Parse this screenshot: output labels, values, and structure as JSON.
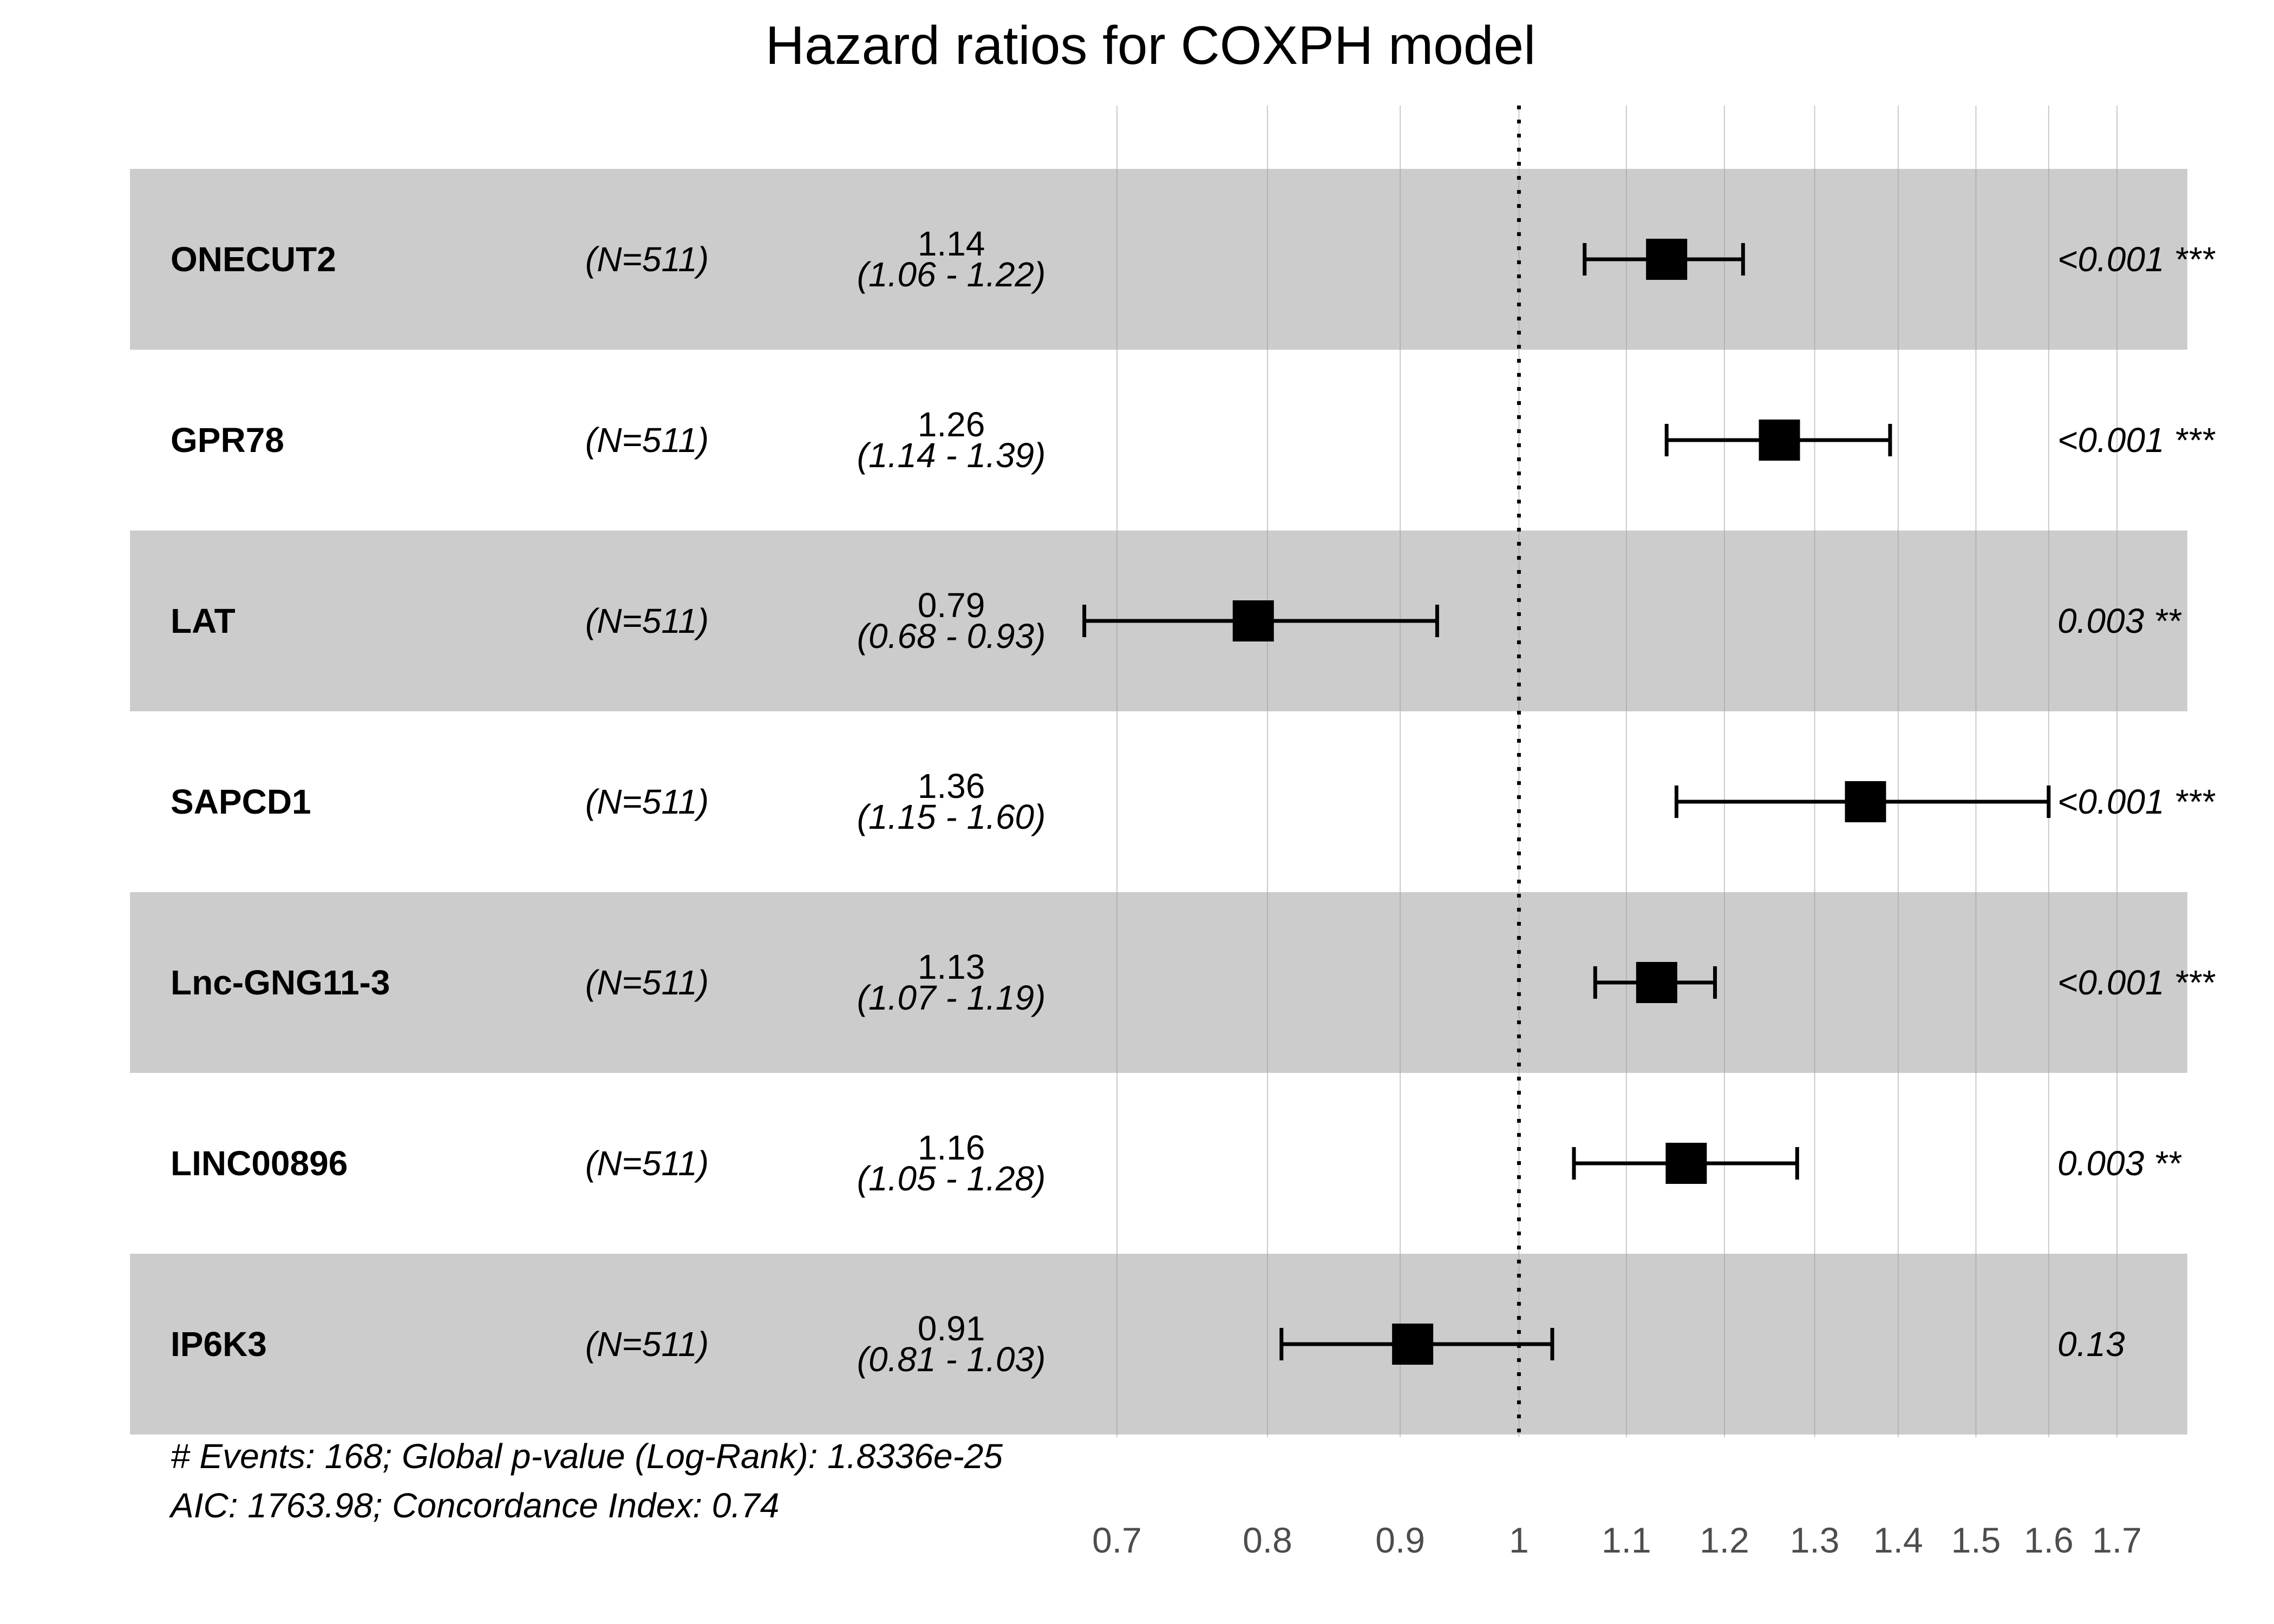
{
  "chart_data": {
    "type": "forest",
    "title": "Hazard ratios for COXPH model",
    "x_scale": "log",
    "xlim": [
      0.7,
      1.7
    ],
    "reference_line": 1,
    "ticks": [
      0.7,
      0.8,
      0.9,
      1,
      1.1,
      1.2,
      1.3,
      1.4,
      1.5,
      1.6,
      1.7
    ],
    "tick_labels": [
      "0.7",
      "0.8",
      "0.9",
      "1",
      "1.1",
      "1.2",
      "1.3",
      "1.4",
      "1.5",
      "1.6",
      "1.7"
    ],
    "rows": [
      {
        "variable": "ONECUT2",
        "n": "(N=511)",
        "hr": 1.14,
        "hr_label": "1.14",
        "lower": 1.06,
        "upper": 1.22,
        "ci_label": "(1.06 - 1.22)",
        "p_label": "<0.001 ***"
      },
      {
        "variable": "GPR78",
        "n": "(N=511)",
        "hr": 1.26,
        "hr_label": "1.26",
        "lower": 1.14,
        "upper": 1.39,
        "ci_label": "(1.14 - 1.39)",
        "p_label": "<0.001 ***"
      },
      {
        "variable": "LAT",
        "n": "(N=511)",
        "hr": 0.79,
        "hr_label": "0.79",
        "lower": 0.68,
        "upper": 0.93,
        "ci_label": "(0.68 - 0.93)",
        "p_label": "0.003 **"
      },
      {
        "variable": "SAPCD1",
        "n": "(N=511)",
        "hr": 1.36,
        "hr_label": "1.36",
        "lower": 1.15,
        "upper": 1.6,
        "ci_label": "(1.15 - 1.60)",
        "p_label": "<0.001 ***"
      },
      {
        "variable": "Lnc-GNG11-3",
        "n": "(N=511)",
        "hr": 1.13,
        "hr_label": "1.13",
        "lower": 1.07,
        "upper": 1.19,
        "ci_label": "(1.07 - 1.19)",
        "p_label": "<0.001 ***"
      },
      {
        "variable": "LINC00896",
        "n": "(N=511)",
        "hr": 1.16,
        "hr_label": "1.16",
        "lower": 1.05,
        "upper": 1.28,
        "ci_label": "(1.05 - 1.28)",
        "p_label": "0.003 **"
      },
      {
        "variable": "IP6K3",
        "n": "(N=511)",
        "hr": 0.91,
        "hr_label": "0.91",
        "lower": 0.81,
        "upper": 1.03,
        "ci_label": "(0.81 - 1.03)",
        "p_label": "0.13"
      }
    ],
    "footnote": [
      "# Events: 168; Global p-value (Log-Rank): 1.8336e-25",
      "AIC: 1763.98; Concordance Index: 0.74"
    ]
  }
}
